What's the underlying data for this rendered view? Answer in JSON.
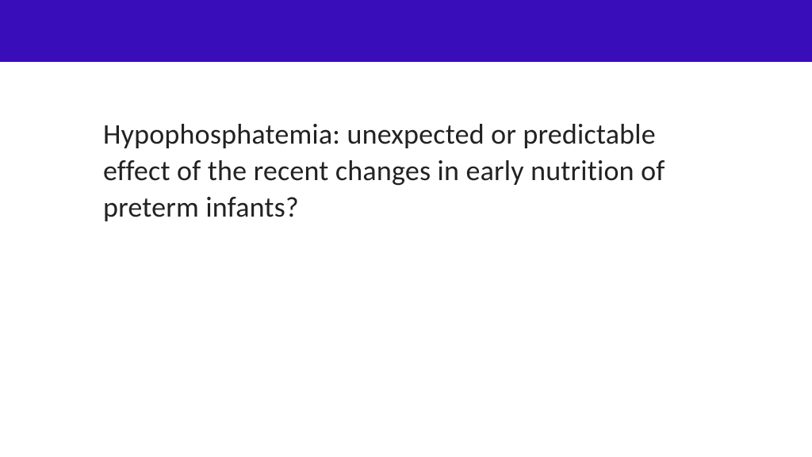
{
  "slide": {
    "header_bar_color": "#3a0dba",
    "background_color": "#ffffff",
    "title": "Hypophosphatemia: unexpected or predictable effect of the recent changes in early nutrition of preterm infants?",
    "title_color": "#222222",
    "title_fontsize": 36,
    "title_fontweight": 400
  }
}
